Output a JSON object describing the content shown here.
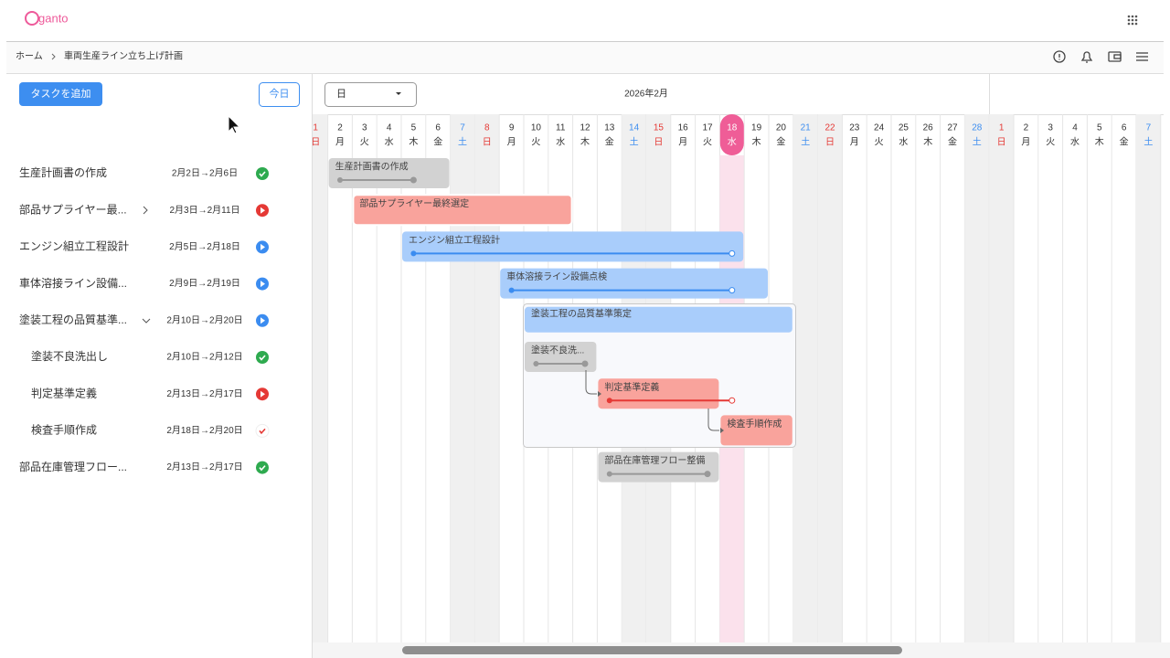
{
  "app": {
    "logo": "ganto"
  },
  "breadcrumb": [
    "ホーム",
    "車両生産ライン立ち上げ計画"
  ],
  "toolbar": {
    "add_task": "タスクを追加",
    "today": "今日",
    "scale": "日",
    "month": "2026年2月"
  },
  "days": [
    {
      "day": "1",
      "weekday": "日"
    },
    {
      "day": "2",
      "weekday": "月"
    },
    {
      "day": "3",
      "weekday": "火"
    },
    {
      "day": "4",
      "weekday": "水"
    },
    {
      "day": "5",
      "weekday": "木"
    },
    {
      "day": "6",
      "weekday": "金"
    },
    {
      "day": "7",
      "weekday": "土"
    },
    {
      "day": "8",
      "weekday": "日"
    },
    {
      "day": "9",
      "weekday": "月"
    },
    {
      "day": "10",
      "weekday": "火"
    },
    {
      "day": "11",
      "weekday": "水"
    },
    {
      "day": "12",
      "weekday": "木"
    },
    {
      "day": "13",
      "weekday": "金"
    },
    {
      "day": "14",
      "weekday": "土"
    },
    {
      "day": "15",
      "weekday": "日"
    },
    {
      "day": "16",
      "weekday": "月"
    },
    {
      "day": "17",
      "weekday": "火"
    },
    {
      "day": "18",
      "weekday": "水",
      "today": true
    },
    {
      "day": "19",
      "weekday": "木"
    },
    {
      "day": "20",
      "weekday": "金"
    },
    {
      "day": "21",
      "weekday": "土"
    },
    {
      "day": "22",
      "weekday": "日"
    },
    {
      "day": "23",
      "weekday": "月"
    },
    {
      "day": "24",
      "weekday": "火"
    },
    {
      "day": "25",
      "weekday": "水"
    },
    {
      "day": "26",
      "weekday": "木"
    },
    {
      "day": "27",
      "weekday": "金"
    },
    {
      "day": "28",
      "weekday": "土"
    },
    {
      "day": "1",
      "weekday": "日"
    },
    {
      "day": "2",
      "weekday": "月"
    },
    {
      "day": "3",
      "weekday": "火"
    },
    {
      "day": "4",
      "weekday": "水"
    },
    {
      "day": "5",
      "weekday": "木"
    },
    {
      "day": "6",
      "weekday": "金"
    },
    {
      "day": "7",
      "weekday": "土"
    }
  ],
  "tasks": [
    {
      "name": "生産計画書の作成",
      "dates": "2月2日→2月6日",
      "status": "done",
      "bar_label": "生産計画書の作成",
      "bar_color": "#d2d2d2"
    },
    {
      "name": "部品サプライヤー最...",
      "dates": "2月3日→2月11日",
      "status": "stopped",
      "bar_label": "部品サプライヤー最終選定",
      "bar_color": "#f9a39c"
    },
    {
      "name": "エンジン組立工程設計",
      "dates": "2月5日→2月18日",
      "status": "active",
      "bar_label": "エンジン組立工程設計",
      "bar_color": "#a9cdfb"
    },
    {
      "name": "車体溶接ライン設備...",
      "dates": "2月9日→2月19日",
      "status": "active",
      "bar_label": "車体溶接ライン設備点検",
      "bar_color": "#a9cdfb"
    },
    {
      "name": "塗装工程の品質基準...",
      "dates": "2月10日→2月20日",
      "status": "active",
      "bar_label": "塗装工程の品質基準策定",
      "bar_color": "#a9cdfb"
    },
    {
      "name": "塗装不良洗出し",
      "dates": "2月10日→2月12日",
      "status": "done",
      "bar_label": "塗装不良洗...",
      "bar_color": "#d2d2d2",
      "subtask": true
    },
    {
      "name": "判定基準定義",
      "dates": "2月13日→2月17日",
      "status": "stopped",
      "bar_label": "判定基準定義",
      "bar_color": "#f9a39c",
      "subtask": true
    },
    {
      "name": "検査手順作成",
      "dates": "2月18日→2月20日",
      "status": "checked",
      "bar_label": "検査手順作成",
      "bar_color": "#f9a39c",
      "subtask": true
    },
    {
      "name": "部品在庫管理フロー...",
      "dates": "2月13日→2月17日",
      "status": "done",
      "bar_label": "部品在庫管理フロー整備",
      "bar_color": "#d2d2d2"
    }
  ]
}
